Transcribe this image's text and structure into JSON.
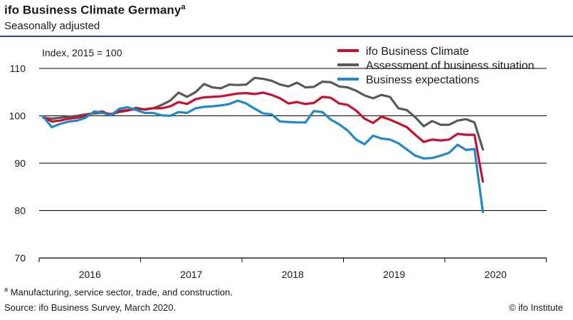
{
  "header": {
    "title": "ifo Business Climate Germany",
    "title_marker": "a",
    "subtitle": "Seasonally adjusted"
  },
  "footer": {
    "footnote_marker": "a",
    "footnote": "Manufacturing, service sector, trade, and construction.",
    "source": "Source: ifo Business Survey, March 2020.",
    "credit": "© ifo Institute"
  },
  "chart_data": {
    "type": "line",
    "title": "ifo Business Climate Germany",
    "subtitle": "Seasonally adjusted",
    "ylabel": "Index, 2015 = 100",
    "ylim": [
      70,
      112
    ],
    "yticks": [
      70,
      80,
      90,
      100,
      110
    ],
    "grid": true,
    "legend_position": "top-right",
    "x_start": "2016-01",
    "x_end": "2020-12",
    "x_year_labels": [
      "2016",
      "2017",
      "2018",
      "2019",
      "2020"
    ],
    "series": [
      {
        "name": "ifo Business Climate",
        "color": "#c8102e",
        "values": [
          99.8,
          98.8,
          99.0,
          99.4,
          99.6,
          100.0,
          100.7,
          100.9,
          100.1,
          101.0,
          101.2,
          101.4,
          101.4,
          101.6,
          101.6,
          102.0,
          102.9,
          102.5,
          103.5,
          103.9,
          104.0,
          104.1,
          104.4,
          104.7,
          104.8,
          104.6,
          104.9,
          104.4,
          103.7,
          102.6,
          102.9,
          102.5,
          102.7,
          104.0,
          103.8,
          102.6,
          102.3,
          101.1,
          99.4,
          98.5,
          99.8,
          99.2,
          98.4,
          97.6,
          96.0,
          94.5,
          95.0,
          94.8,
          95.0,
          96.2,
          96.0,
          96.0,
          86.1
        ]
      },
      {
        "name": "Assessment of business situation",
        "color": "#595959",
        "values": [
          99.6,
          99.4,
          99.6,
          99.8,
          100.0,
          100.3,
          100.5,
          100.6,
          100.4,
          100.8,
          101.1,
          101.7,
          101.3,
          101.6,
          102.3,
          103.2,
          104.9,
          104.0,
          105.0,
          106.7,
          106.0,
          105.8,
          106.6,
          106.5,
          106.6,
          108.0,
          107.8,
          107.4,
          106.6,
          106.2,
          107.0,
          106.0,
          106.1,
          107.2,
          107.1,
          106.2,
          106.0,
          105.3,
          104.3,
          103.7,
          104.4,
          104.0,
          101.6,
          101.2,
          99.7,
          97.8,
          98.9,
          98.1,
          98.1,
          99.0,
          99.3,
          98.6,
          92.9
        ]
      },
      {
        "name": "Business expectations",
        "color": "#1e88c9",
        "values": [
          99.8,
          97.6,
          98.3,
          98.8,
          99.0,
          99.6,
          100.9,
          100.6,
          100.1,
          101.5,
          101.8,
          101.2,
          100.6,
          100.6,
          100.1,
          100.0,
          100.8,
          100.6,
          101.6,
          101.9,
          102.0,
          102.2,
          102.5,
          103.2,
          102.6,
          101.5,
          100.5,
          100.3,
          98.8,
          98.7,
          98.6,
          98.6,
          101.0,
          100.8,
          99.2,
          98.2,
          96.9,
          95.0,
          94.0,
          95.8,
          95.2,
          95.0,
          94.2,
          92.9,
          91.6,
          91.0,
          91.1,
          91.6,
          92.2,
          93.9,
          92.8,
          93.0,
          79.7
        ]
      }
    ]
  }
}
